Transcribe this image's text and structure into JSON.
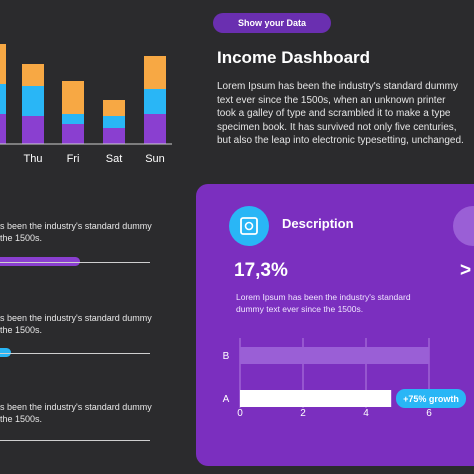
{
  "header": {
    "tag_label": "Show your  Data",
    "title": "Income Dashboard",
    "description": "Lorem Ipsum has been the industry's standard dummy text ever since the 1500s, when an unknown printer took a galley of type and scrambled it to make a type specimen book. It has survived not only five centuries, but also the leap into electronic typesetting, unchanged."
  },
  "rows": [
    {
      "text": "s been the industry's standard dummy\nthe 1500s.",
      "progress_pct": 53
    },
    {
      "text": "s been the industry's standard dummy\nthe 1500s.",
      "progress_pct": 7
    },
    {
      "text": "s been the industry's standard dummy\nthe 1500s.",
      "progress_pct": null
    }
  ],
  "card": {
    "title": "Description",
    "big_value": "17,3%",
    "big_value_2": ">",
    "text": "Lorem Ipsum has been the industry's standard dummy text ever since the 1500s.",
    "icon": "safe-icon"
  },
  "colors": {
    "orange": "#f7a844",
    "cyan": "#29b6f6",
    "purple": "#8a3fd0"
  },
  "chart_data": [
    {
      "type": "bar",
      "stacked": true,
      "categories": [
        "d",
        "Thu",
        "Fri",
        "Sat",
        "Sun"
      ],
      "series": [
        {
          "values": [
            30,
            28,
            20,
            16,
            30
          ],
          "color": "#8a3fd0"
        },
        {
          "values": [
            30,
            30,
            10,
            12,
            25
          ],
          "color": "#29b6f6"
        },
        {
          "values": [
            40,
            22,
            33,
            16,
            33
          ],
          "color": "#f7a844"
        }
      ],
      "grid": false
    },
    {
      "type": "bar",
      "orientation": "horizontal",
      "categories": [
        "A",
        "B"
      ],
      "values": [
        4.8,
        6
      ],
      "x_ticks": [
        "0",
        "2",
        "4",
        "6"
      ],
      "xlim": [
        0,
        6.5
      ],
      "annotation": "+75% growth",
      "grid": true
    }
  ]
}
